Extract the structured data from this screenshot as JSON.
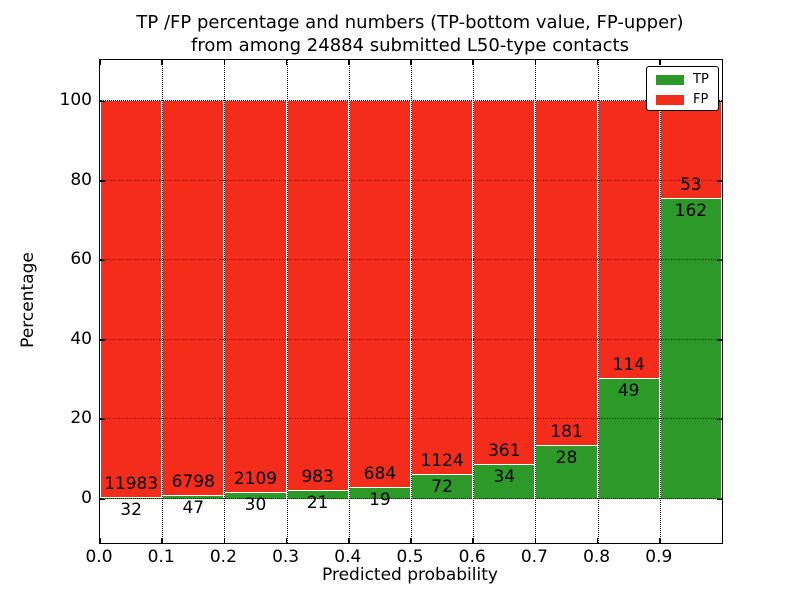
{
  "figure": {
    "title_line1": "TP /FP percentage and numbers (TP-bottom value, FP-upper)",
    "title_line2": "from among 24884 submitted L50-type contacts",
    "xlabel": "Predicted probability",
    "ylabel": "Percentage"
  },
  "legend": {
    "items": [
      {
        "label": "TP",
        "color": "#2d9928"
      },
      {
        "label": "FP",
        "color": "#f42c1c"
      }
    ]
  },
  "chart_data": {
    "type": "bar",
    "stacked": "percent",
    "title": "TP /FP percentage and numbers (TP-bottom value, FP-upper) from among 24884 submitted L50-type contacts",
    "xlabel": "Predicted probability",
    "ylabel": "Percentage",
    "categories": [
      "0.0-0.1",
      "0.1-0.2",
      "0.2-0.3",
      "0.3-0.4",
      "0.4-0.5",
      "0.5-0.6",
      "0.6-0.7",
      "0.7-0.8",
      "0.8-0.9",
      "0.9-1.0"
    ],
    "series": [
      {
        "name": "TP",
        "color": "#2d9928",
        "values": [
          32,
          47,
          30,
          21,
          19,
          72,
          34,
          28,
          49,
          162
        ]
      },
      {
        "name": "FP",
        "color": "#f42c1c",
        "values": [
          11983,
          6798,
          2109,
          983,
          684,
          1124,
          361,
          181,
          114,
          53
        ]
      }
    ],
    "total_contacts": 24884,
    "xticks": [
      "0.0",
      "0.1",
      "0.2",
      "0.3",
      "0.4",
      "0.5",
      "0.6",
      "0.7",
      "0.8",
      "0.9"
    ],
    "yticks": [
      0,
      20,
      40,
      60,
      80,
      100
    ],
    "xlim": [
      0.0,
      1.0
    ],
    "ylim": [
      -11,
      110.5
    ],
    "grid": true,
    "grid_style": "dotted",
    "legend_position": "upper right",
    "bar_label_color": "#000000",
    "background": "#ffffff"
  }
}
